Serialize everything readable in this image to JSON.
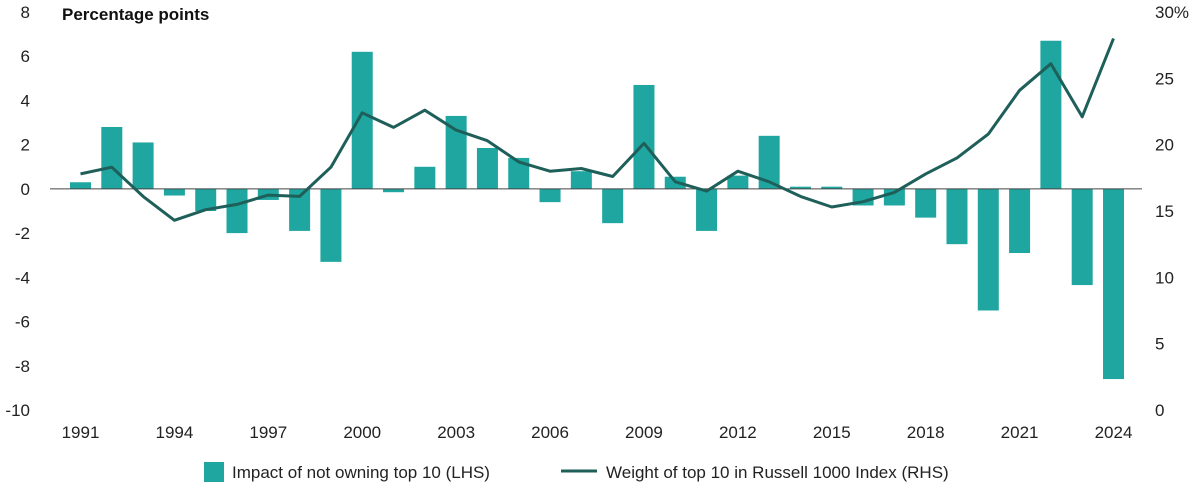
{
  "chart_data": {
    "type": "bar+line",
    "ylabel_left": "Percentage points",
    "y_left": {
      "min": -10,
      "max": 8,
      "ticks": [
        8,
        6,
        4,
        2,
        0,
        -2,
        -4,
        -6,
        -8,
        -10
      ],
      "tick_labels": [
        "8",
        "6",
        "4",
        "2",
        "0",
        "-2",
        "-4",
        "-6",
        "-8",
        "-10"
      ]
    },
    "y_right": {
      "min": 0,
      "max": 30,
      "ticks": [
        30,
        25,
        20,
        15,
        10,
        5,
        0
      ],
      "tick_labels": [
        "30%",
        "25",
        "20",
        "15",
        "10",
        "5",
        "0"
      ]
    },
    "years": [
      1991,
      1992,
      1993,
      1994,
      1995,
      1996,
      1997,
      1998,
      1999,
      2000,
      2001,
      2002,
      2003,
      2004,
      2005,
      2006,
      2007,
      2008,
      2009,
      2010,
      2011,
      2012,
      2013,
      2014,
      2015,
      2016,
      2017,
      2018,
      2019,
      2020,
      2021,
      2022,
      2023,
      2024
    ],
    "x_tick_labels": [
      "1991",
      "1994",
      "1997",
      "2000",
      "2003",
      "2006",
      "2009",
      "2012",
      "2015",
      "2018",
      "2021",
      "2024"
    ],
    "series": [
      {
        "name": "Impact of not owning top 10 (LHS)",
        "kind": "bar",
        "color": "#1fa6a0",
        "values": [
          0.3,
          2.8,
          2.1,
          -0.3,
          -1.0,
          -2.0,
          -0.5,
          -1.9,
          -3.3,
          6.2,
          -0.15,
          1.0,
          3.3,
          1.85,
          1.4,
          -0.6,
          0.8,
          -1.55,
          4.7,
          0.55,
          -1.9,
          0.6,
          2.4,
          0.1,
          0.1,
          -0.75,
          -0.75,
          -1.3,
          -2.5,
          -5.5,
          -2.9,
          6.7,
          -4.35,
          -8.6
        ]
      },
      {
        "name": "Weight of top 10 in Russell 1000 Index (RHS)",
        "kind": "line",
        "color": "#1f5f5a",
        "values": [
          17.8,
          18.3,
          16.1,
          14.3,
          15.1,
          15.5,
          16.2,
          16.1,
          18.3,
          22.4,
          21.3,
          22.6,
          21.1,
          20.3,
          18.7,
          18.0,
          18.2,
          17.6,
          20.1,
          17.2,
          16.5,
          18.0,
          17.2,
          16.1,
          15.3,
          15.7,
          16.4,
          17.8,
          19.0,
          20.8,
          24.1,
          26.1,
          22.1,
          28.0
        ]
      }
    ],
    "legend_placement": "bottom-center"
  }
}
